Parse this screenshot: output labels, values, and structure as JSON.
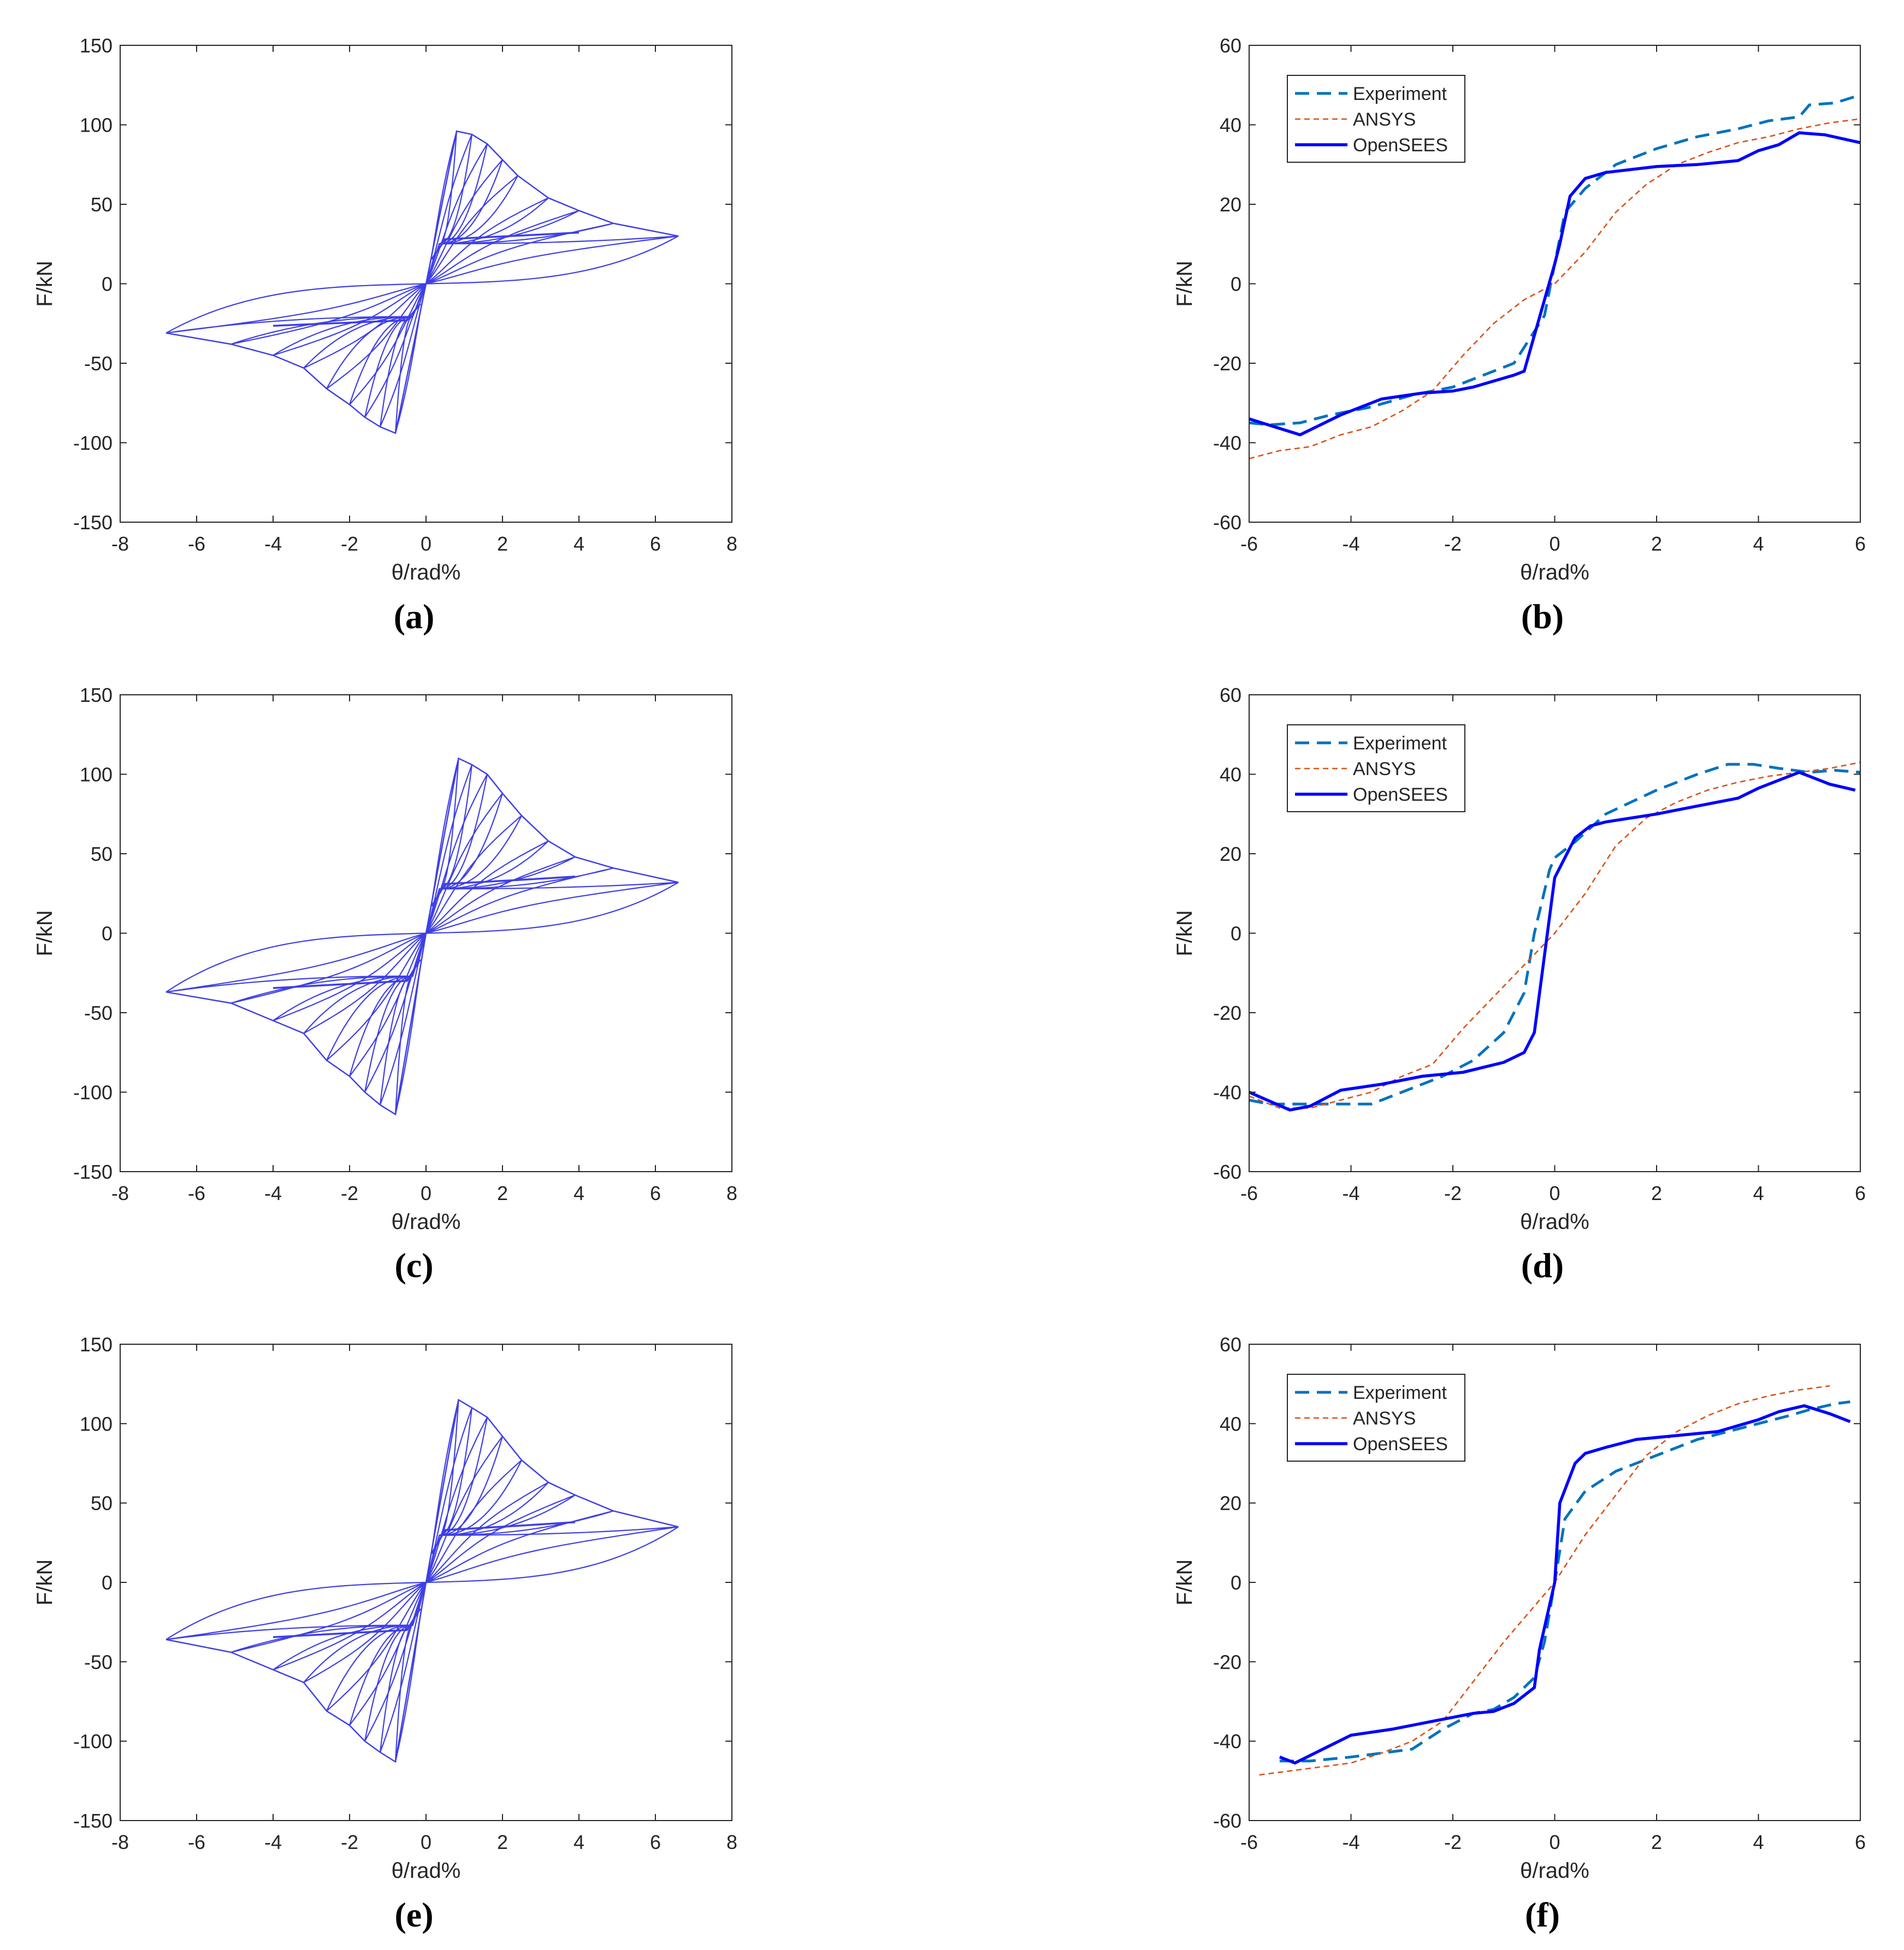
{
  "figure": {
    "axis_color": "#262626",
    "hysteresis_color": "#3f3fe6",
    "panels_order": [
      "a",
      "b",
      "c",
      "d",
      "e",
      "f"
    ]
  },
  "chart_data": [
    {
      "id": "a",
      "type": "line",
      "caption": "(a)",
      "xlabel": "θ/rad%",
      "ylabel": "F/kN",
      "xlim": [
        -8,
        8
      ],
      "ylim": [
        -150,
        150
      ],
      "xticks": [
        -8,
        -6,
        -4,
        -2,
        0,
        2,
        4,
        6,
        8
      ],
      "yticks": [
        -150,
        -100,
        -50,
        0,
        50,
        100,
        150
      ],
      "grid": false,
      "legend": null,
      "hysteresis": {
        "peaks": [
          [
            0.8,
            96
          ],
          [
            1.2,
            94
          ],
          [
            1.6,
            88
          ],
          [
            2.0,
            78
          ],
          [
            2.4,
            68
          ],
          [
            3.2,
            54
          ],
          [
            4.0,
            46
          ],
          [
            4.9,
            38
          ],
          [
            6.6,
            30
          ]
        ],
        "pinch": 28,
        "neg_peaks": [
          [
            -0.8,
            -94
          ],
          [
            -1.2,
            -90
          ],
          [
            -1.6,
            -84
          ],
          [
            -2.0,
            -76
          ],
          [
            -2.6,
            -66
          ],
          [
            -3.2,
            -53
          ],
          [
            -4.0,
            -45
          ],
          [
            -5.1,
            -38
          ],
          [
            -6.8,
            -31
          ]
        ],
        "neg_pinch": -23
      },
      "series": []
    },
    {
      "id": "b",
      "type": "line",
      "caption": "(b)",
      "xlabel": "θ/rad%",
      "ylabel": "F/kN",
      "xlim": [
        -6,
        6
      ],
      "ylim": [
        -60,
        60
      ],
      "xticks": [
        -6,
        -4,
        -2,
        0,
        2,
        4,
        6
      ],
      "yticks": [
        -60,
        -40,
        -20,
        0,
        20,
        40,
        60
      ],
      "grid": false,
      "legend": "top-left",
      "series": [
        {
          "name": "Experiment",
          "style": "dashed",
          "color": "#0072bd",
          "x": [
            -6,
            -5.6,
            -5.0,
            -4.4,
            -3.6,
            -2.8,
            -2.0,
            -1.4,
            -0.8,
            -0.5,
            -0.2,
            0,
            0.2,
            0.6,
            1.2,
            2.0,
            2.8,
            3.6,
            4.2,
            4.8,
            5.0,
            5.5,
            6.0
          ],
          "y": [
            -35,
            -35.5,
            -35,
            -33,
            -31,
            -28,
            -26,
            -23,
            -20,
            -14,
            -8,
            5,
            18,
            24,
            30,
            34,
            37,
            39,
            41,
            42,
            45,
            45.5,
            47.5
          ]
        },
        {
          "name": "ANSYS",
          "style": "dotted",
          "color": "#d95319",
          "x": [
            -6,
            -5.4,
            -4.8,
            -4.2,
            -3.6,
            -3.0,
            -2.4,
            -1.8,
            -1.2,
            -0.6,
            0,
            0.6,
            1.2,
            1.8,
            2.4,
            3.0,
            3.6,
            4.2,
            4.8,
            5.4,
            6.0
          ],
          "y": [
            -44,
            -42,
            -41,
            -38,
            -36,
            -32,
            -27,
            -18,
            -10,
            -4,
            0,
            8,
            18,
            25,
            30,
            33,
            35.5,
            37,
            39,
            40.5,
            41.5
          ]
        },
        {
          "name": "OpenSEES",
          "style": "solid",
          "color": "#0000ff",
          "x": [
            -6,
            -5.0,
            -4.2,
            -3.4,
            -2.6,
            -2.0,
            -1.6,
            -0.8,
            -0.6,
            0,
            0.1,
            0.3,
            0.6,
            1.0,
            2.0,
            2.8,
            3.6,
            4.0,
            4.4,
            4.8,
            5.3,
            6.0
          ],
          "y": [
            -34,
            -38,
            -33,
            -29,
            -27.5,
            -27,
            -26,
            -23,
            -22,
            5,
            10,
            22,
            26.5,
            28,
            29.5,
            30,
            31,
            33.5,
            35,
            38,
            37.5,
            35.5
          ]
        }
      ]
    },
    {
      "id": "c",
      "type": "line",
      "caption": "(c)",
      "xlabel": "θ/rad%",
      "ylabel": "F/kN",
      "xlim": [
        -8,
        8
      ],
      "ylim": [
        -150,
        150
      ],
      "xticks": [
        -8,
        -6,
        -4,
        -2,
        0,
        2,
        4,
        6,
        8
      ],
      "yticks": [
        -150,
        -100,
        -50,
        0,
        50,
        100,
        150
      ],
      "grid": false,
      "legend": null,
      "hysteresis": {
        "peaks": [
          [
            0.85,
            110
          ],
          [
            1.2,
            106
          ],
          [
            1.6,
            100
          ],
          [
            2.0,
            88
          ],
          [
            2.5,
            74
          ],
          [
            3.2,
            58
          ],
          [
            3.9,
            48
          ],
          [
            4.9,
            41
          ],
          [
            6.6,
            32
          ]
        ],
        "pinch": 31,
        "neg_peaks": [
          [
            -0.8,
            -114
          ],
          [
            -1.2,
            -108
          ],
          [
            -1.6,
            -100
          ],
          [
            -2.0,
            -90
          ],
          [
            -2.6,
            -80
          ],
          [
            -3.2,
            -63
          ],
          [
            -4.0,
            -55
          ],
          [
            -5.1,
            -44
          ],
          [
            -6.8,
            -37
          ]
        ],
        "neg_pinch": -30
      },
      "series": []
    },
    {
      "id": "d",
      "type": "line",
      "caption": "(d)",
      "xlabel": "θ/rad%",
      "ylabel": "F/kN",
      "xlim": [
        -6,
        6
      ],
      "ylim": [
        -60,
        60
      ],
      "xticks": [
        -6,
        -4,
        -2,
        0,
        2,
        4,
        6
      ],
      "yticks": [
        -60,
        -40,
        -20,
        0,
        20,
        40,
        60
      ],
      "grid": false,
      "legend": "top-left",
      "series": [
        {
          "name": "Experiment",
          "style": "dashed",
          "color": "#0072bd",
          "x": [
            -6,
            -5.6,
            -4.8,
            -4.0,
            -3.6,
            -2.8,
            -2.2,
            -1.6,
            -1.0,
            -0.6,
            -0.4,
            -0.1,
            0,
            0.4,
            1.0,
            2.0,
            2.8,
            3.4,
            3.9,
            4.4,
            5.0,
            5.5,
            6.0
          ],
          "y": [
            -42,
            -43,
            -43,
            -43,
            -43,
            -39,
            -36,
            -32,
            -25,
            -15,
            0,
            16,
            19,
            23,
            30,
            36,
            40,
            42.5,
            42.5,
            41.5,
            40.5,
            41,
            40.5
          ]
        },
        {
          "name": "ANSYS",
          "style": "dotted",
          "color": "#d95319",
          "x": [
            -6,
            -5.4,
            -4.8,
            -4.2,
            -3.6,
            -3.0,
            -2.4,
            -1.8,
            -1.2,
            -0.6,
            0,
            0.6,
            1.2,
            1.8,
            2.4,
            3.0,
            3.6,
            4.2,
            4.8,
            5.4,
            6.0
          ],
          "y": [
            -41,
            -44,
            -44,
            -42,
            -40,
            -36,
            -33,
            -24,
            -16,
            -8,
            0,
            10,
            22,
            29,
            33,
            36,
            38,
            39.5,
            40.5,
            41.5,
            43
          ]
        },
        {
          "name": "OpenSEES",
          "style": "solid",
          "color": "#0000ff",
          "x": [
            -6,
            -5.2,
            -4.8,
            -4.2,
            -3.4,
            -2.6,
            -1.8,
            -1.0,
            -0.6,
            -0.4,
            0,
            0.4,
            0.7,
            1.0,
            2.0,
            2.8,
            3.6,
            4.0,
            4.4,
            4.8,
            5.4,
            5.9
          ],
          "y": [
            -40,
            -44.5,
            -43.5,
            -39.5,
            -38,
            -36,
            -35,
            -32.5,
            -30,
            -25,
            14,
            24,
            27,
            28,
            30,
            32,
            34,
            36.5,
            38.5,
            40.5,
            37.5,
            36
          ]
        }
      ]
    },
    {
      "id": "e",
      "type": "line",
      "caption": "(e)",
      "xlabel": "θ/rad%",
      "ylabel": "F/kN",
      "xlim": [
        -8,
        8
      ],
      "ylim": [
        -150,
        150
      ],
      "xticks": [
        -8,
        -6,
        -4,
        -2,
        0,
        2,
        4,
        6,
        8
      ],
      "yticks": [
        -150,
        -100,
        -50,
        0,
        50,
        100,
        150
      ],
      "grid": false,
      "legend": null,
      "hysteresis": {
        "peaks": [
          [
            0.85,
            115
          ],
          [
            1.2,
            110
          ],
          [
            1.6,
            104
          ],
          [
            2.0,
            92
          ],
          [
            2.5,
            77
          ],
          [
            3.2,
            63
          ],
          [
            3.9,
            55
          ],
          [
            4.9,
            45
          ],
          [
            6.6,
            35
          ]
        ],
        "pinch": 33,
        "neg_peaks": [
          [
            -0.8,
            -113
          ],
          [
            -1.2,
            -107
          ],
          [
            -1.6,
            -100
          ],
          [
            -2.0,
            -90
          ],
          [
            -2.6,
            -81
          ],
          [
            -3.2,
            -63
          ],
          [
            -4.0,
            -55
          ],
          [
            -5.1,
            -44
          ],
          [
            -6.8,
            -36
          ]
        ],
        "neg_pinch": -30
      },
      "series": []
    },
    {
      "id": "f",
      "type": "line",
      "caption": "(f)",
      "xlabel": "θ/rad%",
      "ylabel": "F/kN",
      "xlim": [
        -6,
        6
      ],
      "ylim": [
        -60,
        60
      ],
      "xticks": [
        -6,
        -4,
        -2,
        0,
        2,
        4,
        6
      ],
      "yticks": [
        -60,
        -40,
        -20,
        0,
        20,
        40,
        60
      ],
      "grid": false,
      "legend": "top-left",
      "series": [
        {
          "name": "Experiment",
          "style": "dashed",
          "color": "#0072bd",
          "x": [
            -5.4,
            -4.8,
            -4.0,
            -3.4,
            -2.8,
            -2.2,
            -1.6,
            -1.2,
            -0.8,
            -0.4,
            -0.2,
            0,
            0.2,
            0.6,
            1.2,
            2.0,
            2.8,
            3.4,
            4.0,
            4.6,
            5.0,
            5.5,
            5.8
          ],
          "y": [
            -45,
            -45,
            -44,
            -43,
            -42,
            -37,
            -33,
            -32,
            -29,
            -24,
            -15,
            0,
            16,
            23,
            28,
            32,
            36,
            38,
            40,
            42,
            43.5,
            45,
            45.5
          ]
        },
        {
          "name": "ANSYS",
          "style": "dotted",
          "color": "#d95319",
          "x": [
            -5.8,
            -5.2,
            -4.6,
            -4.0,
            -3.4,
            -2.8,
            -2.2,
            -1.6,
            -1.0,
            -0.4,
            0,
            0.6,
            1.2,
            1.8,
            2.4,
            3.0,
            3.6,
            4.2,
            4.8,
            5.4
          ],
          "y": [
            -48.5,
            -47.5,
            -46.5,
            -45.5,
            -43,
            -40,
            -35,
            -25,
            -15,
            -6,
            0,
            12,
            22,
            32,
            38,
            42,
            45,
            47,
            48.5,
            49.5
          ]
        },
        {
          "name": "OpenSEES",
          "style": "solid",
          "color": "#0000ff",
          "x": [
            -5.4,
            -5.1,
            -4.0,
            -3.2,
            -2.4,
            -1.6,
            -1.2,
            -0.8,
            -0.4,
            -0.3,
            0,
            0.1,
            0.4,
            0.6,
            1.0,
            1.6,
            2.4,
            3.2,
            4.0,
            4.4,
            4.9,
            5.4,
            5.8
          ],
          "y": [
            -44,
            -45.5,
            -38.5,
            -37,
            -35,
            -33,
            -32.5,
            -30.5,
            -26.5,
            -17,
            0,
            20,
            30,
            32.5,
            34,
            36,
            37,
            38,
            41,
            43,
            44.5,
            42.5,
            40.5
          ]
        }
      ]
    }
  ]
}
